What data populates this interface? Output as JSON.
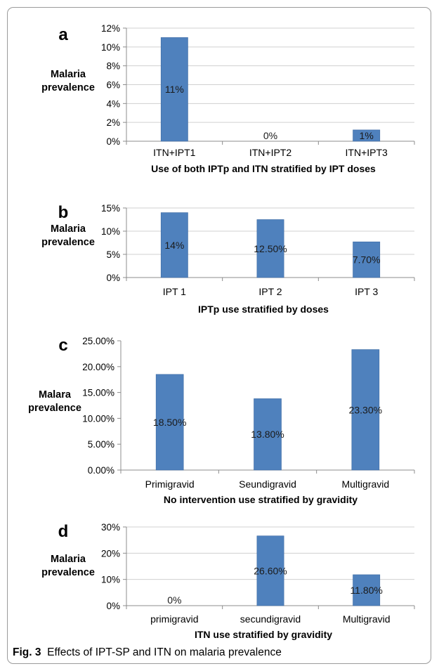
{
  "caption": {
    "label": "Fig. 3",
    "text": "Effects of IPT-SP and ITN on malaria prevalence"
  },
  "colors": {
    "bar": "#4f81bd",
    "bar_edge": "#3c6aa3",
    "grid": "#d0d0d0",
    "axis": "#8c8c8c"
  },
  "chart_data": [
    {
      "panel": "a",
      "type": "bar",
      "ylabel": [
        "Malaria",
        "prevalence"
      ],
      "xlabel": "Use of  both IPTp and ITN stratified by IPT doses",
      "categories": [
        "ITN+IPT1",
        "ITN+IPT2",
        "ITN+IPT3"
      ],
      "values": [
        11,
        0,
        1.2
      ],
      "data_labels": [
        "11%",
        "0%",
        "1%"
      ],
      "ylim": [
        0,
        12
      ],
      "yticks": [
        0,
        2,
        4,
        6,
        8,
        10,
        12
      ],
      "ytick_labels": [
        "0%",
        "2%",
        "4%",
        "6%",
        "8%",
        "10%",
        "12%"
      ],
      "grid": true
    },
    {
      "panel": "b",
      "type": "bar",
      "ylabel": [
        "Malaria",
        "prevalence"
      ],
      "xlabel": "IPTp  use stratified  by  doses",
      "categories": [
        "IPT 1",
        "IPT 2",
        "IPT 3"
      ],
      "values": [
        14,
        12.5,
        7.7
      ],
      "data_labels": [
        "14%",
        "12.50%",
        "7.70%"
      ],
      "ylim": [
        0,
        15
      ],
      "yticks": [
        0,
        5,
        10,
        15
      ],
      "ytick_labels": [
        "0%",
        "5%",
        "10%",
        "15%"
      ],
      "grid": true
    },
    {
      "panel": "c",
      "type": "bar",
      "ylabel": [
        "Malara",
        "prevalence"
      ],
      "xlabel": "No intervention use stratified by gravidity",
      "categories": [
        "Primigravid",
        "Seundigravid",
        "Multigravid"
      ],
      "values": [
        18.5,
        13.8,
        23.3
      ],
      "data_labels": [
        "18.50%",
        "13.80%",
        "23.30%"
      ],
      "ylim": [
        0,
        25
      ],
      "yticks": [
        0,
        5,
        10,
        15,
        20,
        25
      ],
      "ytick_labels": [
        "0.00%",
        "5.00%",
        "10.00%",
        "15.00%",
        "20.00%",
        "25.00%"
      ],
      "grid": false
    },
    {
      "panel": "d",
      "type": "bar",
      "ylabel": [
        "Malaria",
        "prevalence"
      ],
      "xlabel": "ITN use stratified by  gravidity",
      "categories": [
        "primigravid",
        "secundigravid",
        "Multigravid"
      ],
      "values": [
        0,
        26.6,
        11.8
      ],
      "data_labels": [
        "0%",
        "26.60%",
        "11.80%"
      ],
      "ylim": [
        0,
        30
      ],
      "yticks": [
        0,
        10,
        20,
        30
      ],
      "ytick_labels": [
        "0%",
        "10%",
        "20%",
        "30%"
      ],
      "grid": true
    }
  ]
}
